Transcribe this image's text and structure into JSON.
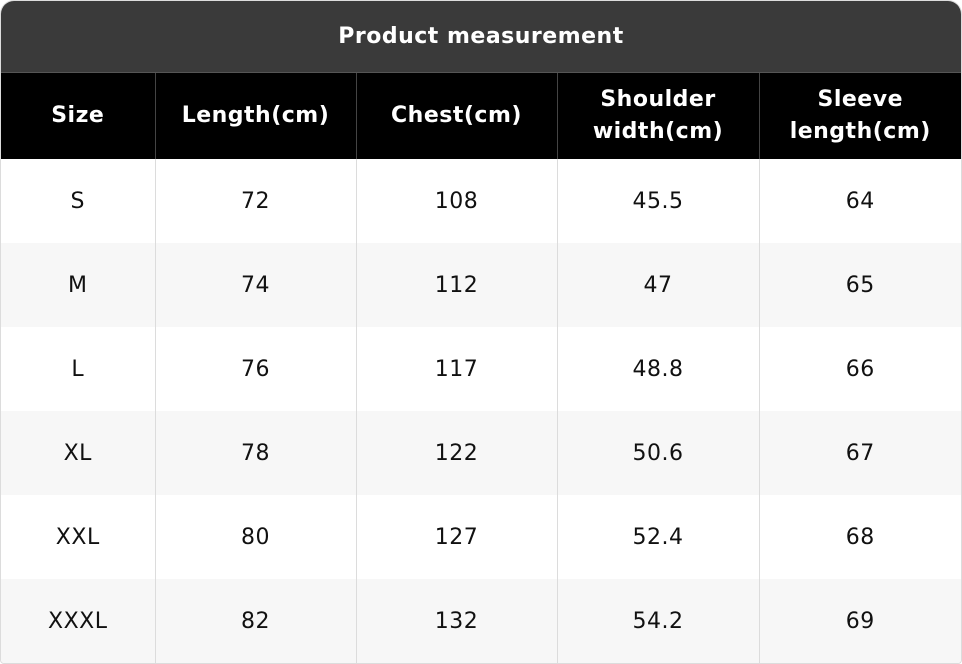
{
  "header": {
    "title": "Product measurement"
  },
  "table": {
    "columns": [
      "Size",
      "Length(cm)",
      "Chest(cm)",
      "Shoulder width(cm)",
      "Sleeve length(cm)"
    ],
    "rows": [
      [
        "S",
        "72",
        "108",
        "45.5",
        "64"
      ],
      [
        "M",
        "74",
        "112",
        "47",
        "65"
      ],
      [
        "L",
        "76",
        "117",
        "48.8",
        "66"
      ],
      [
        "XL",
        "78",
        "122",
        "50.6",
        "67"
      ],
      [
        "XXL",
        "80",
        "127",
        "52.4",
        "68"
      ],
      [
        "XXXL",
        "82",
        "132",
        "54.2",
        "69"
      ]
    ]
  }
}
